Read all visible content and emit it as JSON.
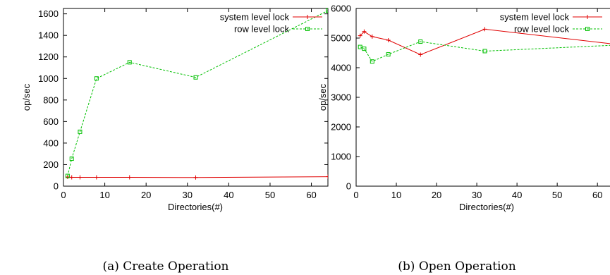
{
  "chart_data": [
    {
      "type": "line",
      "caption": "(a) Create Operation",
      "xlabel": "Directories(#)",
      "ylabel": "op/sec",
      "xlim": [
        0,
        64
      ],
      "ylim": [
        0,
        1650
      ],
      "xticks": [
        0,
        10,
        20,
        30,
        40,
        50,
        60
      ],
      "yticks": [
        0,
        200,
        400,
        600,
        800,
        1000,
        1200,
        1400,
        1600
      ],
      "legend_position": "top-right",
      "grid": false,
      "series": [
        {
          "name": "system level lock",
          "color": "#e00000",
          "marker": "plus",
          "x": [
            1,
            2,
            4,
            8,
            16,
            32,
            64
          ],
          "y": [
            85,
            82,
            82,
            82,
            82,
            80,
            88
          ]
        },
        {
          "name": "row level lock",
          "color": "#00c000",
          "marker": "square",
          "x": [
            1,
            2,
            4,
            8,
            16,
            32,
            64
          ],
          "y": [
            95,
            255,
            505,
            1000,
            1150,
            1010,
            1630
          ]
        }
      ]
    },
    {
      "type": "line",
      "caption": "(b) Open Operation",
      "xlabel": "Directories(#)",
      "ylabel": "op/sec",
      "xlim": [
        0,
        64
      ],
      "ylim": [
        0,
        6000
      ],
      "xticks": [
        0,
        10,
        20,
        30,
        40,
        50,
        60
      ],
      "yticks": [
        0,
        1000,
        2000,
        3000,
        4000,
        5000,
        6000
      ],
      "legend_position": "top-right",
      "grid": false,
      "series": [
        {
          "name": "system level lock",
          "color": "#e00000",
          "marker": "plus",
          "x": [
            1,
            2,
            4,
            8,
            16,
            32,
            64
          ],
          "y": [
            5080,
            5220,
            5050,
            4930,
            4440,
            5300,
            4800
          ]
        },
        {
          "name": "row level lock",
          "color": "#00c000",
          "marker": "square",
          "x": [
            1,
            2,
            4,
            8,
            16,
            32,
            64
          ],
          "y": [
            4700,
            4640,
            4210,
            4450,
            4880,
            4560,
            4760
          ]
        }
      ]
    }
  ]
}
